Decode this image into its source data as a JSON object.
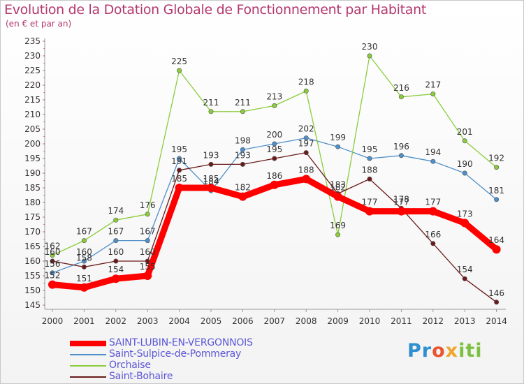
{
  "chart_data": {
    "type": "line",
    "title": "Evolution de la Dotation Globale de Fonctionnement par Habitant",
    "subtitle": "(en € et par an)",
    "x": [
      "2000",
      "2001",
      "2002",
      "2003",
      "2004",
      "2005",
      "2006",
      "2007",
      "2008",
      "2009",
      "2010",
      "2011",
      "2012",
      "2013",
      "2014"
    ],
    "ylim": [
      145,
      235
    ],
    "yticks": [
      145,
      150,
      155,
      160,
      165,
      170,
      175,
      180,
      185,
      190,
      195,
      200,
      205,
      210,
      215,
      220,
      225,
      230,
      235
    ],
    "grid": false,
    "legend_position": "bottom-left",
    "series": [
      {
        "name": "SAINT-LUBIN-EN-VERGONNOIS",
        "color": "#ff0000",
        "values": [
          152,
          151,
          154,
          155,
          185,
          185,
          182,
          186,
          188,
          182,
          177,
          177,
          177,
          173,
          164
        ]
      },
      {
        "name": "Saint-Sulpice-de-Pommeray",
        "color": "#4f8fc8",
        "values": [
          156,
          160,
          167,
          167,
          195,
          184,
          198,
          200,
          202,
          199,
          195,
          196,
          194,
          190,
          181
        ]
      },
      {
        "name": "Orchaise",
        "color": "#8bcc3c",
        "values": [
          162,
          167,
          174,
          176,
          225,
          211,
          211,
          213,
          218,
          169,
          230,
          216,
          217,
          201,
          192
        ]
      },
      {
        "name": "Saint-Bohaire",
        "color": "#6b1a1a",
        "values": [
          160,
          158,
          160,
          160,
          191,
          193,
          193,
          195,
          197,
          183,
          188,
          178,
          166,
          154,
          146
        ]
      }
    ]
  },
  "logo": {
    "p1": "Pr",
    "p2": "o",
    "p3": "x",
    "p4": "iti"
  }
}
